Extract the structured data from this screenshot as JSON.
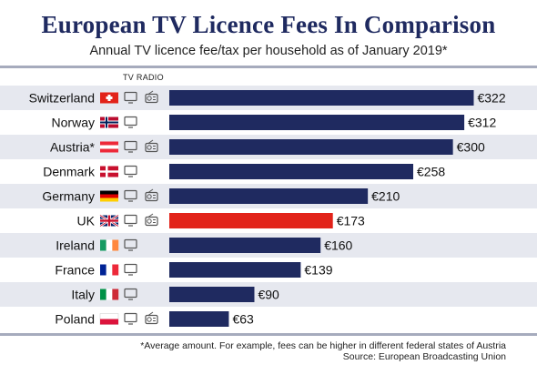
{
  "header": {
    "title": "European TV Licence Fees In Comparison",
    "subtitle": "Annual TV licence fee/tax per household as of January 2019*",
    "column_heading": "TV RADIO"
  },
  "footer": {
    "footnote": "*Average amount. For example, fees can be higher in different federal states of Austria",
    "source": "Source: European Broadcasting Union"
  },
  "colors": {
    "bar": "#1f2a60",
    "highlight": "#e2231a",
    "row_band": "#e6e8ef",
    "icon": "#555555"
  },
  "chart_data": {
    "type": "bar",
    "orientation": "horizontal",
    "title": "European TV Licence Fees In Comparison",
    "subtitle": "Annual TV licence fee/tax per household as of January 2019*",
    "unit": "€",
    "categories": [
      "Switzerland",
      "Norway",
      "Austria*",
      "Denmark",
      "Germany",
      "UK",
      "Ireland",
      "France",
      "Italy",
      "Poland"
    ],
    "values": [
      322,
      312,
      300,
      258,
      210,
      173,
      160,
      139,
      90,
      63
    ],
    "value_labels": [
      "€322",
      "€312",
      "€300",
      "€258",
      "€210",
      "€173",
      "€160",
      "€139",
      "€90",
      "€63"
    ],
    "flags": [
      "switzerland",
      "norway",
      "austria",
      "denmark",
      "germany",
      "uk",
      "ireland",
      "france",
      "italy",
      "poland"
    ],
    "radio_fee": [
      true,
      false,
      true,
      false,
      true,
      true,
      false,
      false,
      false,
      true
    ],
    "highlight": "UK",
    "xlim": [
      0,
      335
    ],
    "grid": false,
    "legend": "none"
  }
}
